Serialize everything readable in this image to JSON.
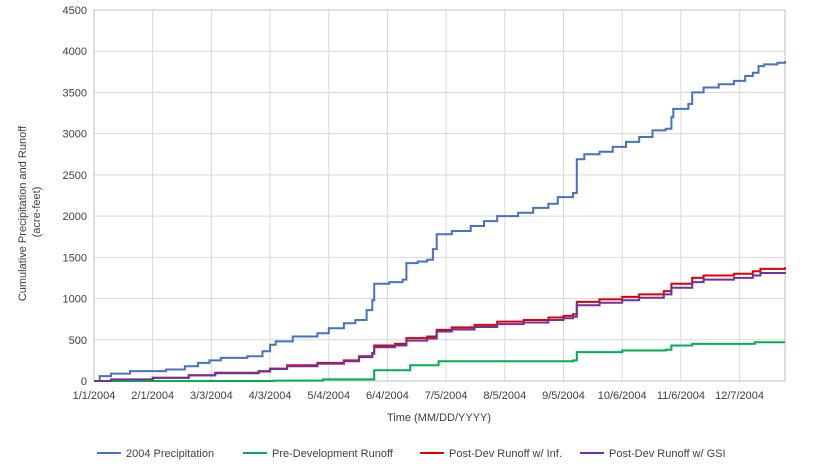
{
  "chart_data": {
    "type": "line",
    "xlabel": "Time (MM/DD/YYYY)",
    "ylabel_lines": [
      "Cumulative Precipitation and Runoff",
      "(acre-feet)"
    ],
    "ylim": [
      0,
      4500
    ],
    "yticks": [
      0,
      500,
      1000,
      1500,
      2000,
      2500,
      3000,
      3500,
      4000,
      4500
    ],
    "xlim": [
      "2004-01-01",
      "2004-12-31"
    ],
    "xticks": [
      {
        "date": "2004-01-01",
        "label": "1/1/2004"
      },
      {
        "date": "2004-02-01",
        "label": "2/1/2004"
      },
      {
        "date": "2004-03-03",
        "label": "3/3/2004"
      },
      {
        "date": "2004-04-03",
        "label": "4/3/2004"
      },
      {
        "date": "2004-05-04",
        "label": "5/4/2004"
      },
      {
        "date": "2004-06-04",
        "label": "6/4/2004"
      },
      {
        "date": "2004-07-05",
        "label": "7/5/2004"
      },
      {
        "date": "2004-08-05",
        "label": "8/5/2004"
      },
      {
        "date": "2004-09-05",
        "label": "9/5/2004"
      },
      {
        "date": "2004-10-06",
        "label": "10/6/2004"
      },
      {
        "date": "2004-11-06",
        "label": "11/6/2004"
      },
      {
        "date": "2004-12-07",
        "label": "12/7/2004"
      }
    ],
    "grid": true,
    "legend_position": "bottom",
    "series": [
      {
        "name": "2004 Precipitation",
        "color": "#4472C4",
        "points": [
          [
            "2004-01-01",
            0
          ],
          [
            "2004-01-04",
            60
          ],
          [
            "2004-01-10",
            90
          ],
          [
            "2004-01-20",
            120
          ],
          [
            "2004-02-08",
            140
          ],
          [
            "2004-02-18",
            180
          ],
          [
            "2004-02-25",
            220
          ],
          [
            "2004-03-02",
            250
          ],
          [
            "2004-03-08",
            280
          ],
          [
            "2004-03-22",
            300
          ],
          [
            "2004-03-30",
            360
          ],
          [
            "2004-04-03",
            440
          ],
          [
            "2004-04-06",
            480
          ],
          [
            "2004-04-15",
            540
          ],
          [
            "2004-04-28",
            580
          ],
          [
            "2004-05-04",
            640
          ],
          [
            "2004-05-12",
            700
          ],
          [
            "2004-05-18",
            740
          ],
          [
            "2004-05-24",
            860
          ],
          [
            "2004-05-27",
            980
          ],
          [
            "2004-05-28",
            1180
          ],
          [
            "2004-06-05",
            1200
          ],
          [
            "2004-06-12",
            1230
          ],
          [
            "2004-06-14",
            1430
          ],
          [
            "2004-06-20",
            1450
          ],
          [
            "2004-06-25",
            1470
          ],
          [
            "2004-06-28",
            1600
          ],
          [
            "2004-06-30",
            1780
          ],
          [
            "2004-07-08",
            1820
          ],
          [
            "2004-07-18",
            1880
          ],
          [
            "2004-07-25",
            1940
          ],
          [
            "2004-08-01",
            2000
          ],
          [
            "2004-08-12",
            2040
          ],
          [
            "2004-08-20",
            2100
          ],
          [
            "2004-08-28",
            2150
          ],
          [
            "2004-09-02",
            2230
          ],
          [
            "2004-09-10",
            2280
          ],
          [
            "2004-09-12",
            2690
          ],
          [
            "2004-09-16",
            2750
          ],
          [
            "2004-09-24",
            2780
          ],
          [
            "2004-10-01",
            2840
          ],
          [
            "2004-10-08",
            2900
          ],
          [
            "2004-10-15",
            2960
          ],
          [
            "2004-10-22",
            3040
          ],
          [
            "2004-10-29",
            3060
          ],
          [
            "2004-11-01",
            3200
          ],
          [
            "2004-11-02",
            3300
          ],
          [
            "2004-11-10",
            3360
          ],
          [
            "2004-11-12",
            3500
          ],
          [
            "2004-11-18",
            3560
          ],
          [
            "2004-11-26",
            3600
          ],
          [
            "2004-12-04",
            3640
          ],
          [
            "2004-12-10",
            3700
          ],
          [
            "2004-12-14",
            3740
          ],
          [
            "2004-12-17",
            3820
          ],
          [
            "2004-12-20",
            3840
          ],
          [
            "2004-12-27",
            3860
          ],
          [
            "2004-12-31",
            3880
          ]
        ]
      },
      {
        "name": "Pre-Development Runoff",
        "color": "#00B050",
        "points": [
          [
            "2004-01-01",
            0
          ],
          [
            "2004-04-05",
            5
          ],
          [
            "2004-05-01",
            20
          ],
          [
            "2004-05-28",
            130
          ],
          [
            "2004-06-16",
            190
          ],
          [
            "2004-07-01",
            240
          ],
          [
            "2004-09-10",
            250
          ],
          [
            "2004-09-12",
            350
          ],
          [
            "2004-10-06",
            370
          ],
          [
            "2004-10-29",
            380
          ],
          [
            "2004-11-01",
            430
          ],
          [
            "2004-11-12",
            450
          ],
          [
            "2004-12-15",
            470
          ],
          [
            "2004-12-31",
            470
          ]
        ]
      },
      {
        "name": "Post-Dev Runoff w/ Inf.",
        "color": "#E00000",
        "points": [
          [
            "2004-01-01",
            0
          ],
          [
            "2004-01-10",
            20
          ],
          [
            "2004-02-01",
            40
          ],
          [
            "2004-02-20",
            70
          ],
          [
            "2004-03-05",
            100
          ],
          [
            "2004-03-28",
            120
          ],
          [
            "2004-04-03",
            150
          ],
          [
            "2004-04-12",
            190
          ],
          [
            "2004-04-28",
            220
          ],
          [
            "2004-05-12",
            250
          ],
          [
            "2004-05-20",
            300
          ],
          [
            "2004-05-27",
            340
          ],
          [
            "2004-05-28",
            430
          ],
          [
            "2004-06-08",
            450
          ],
          [
            "2004-06-14",
            520
          ],
          [
            "2004-06-25",
            540
          ],
          [
            "2004-06-30",
            620
          ],
          [
            "2004-07-08",
            650
          ],
          [
            "2004-07-20",
            680
          ],
          [
            "2004-08-01",
            720
          ],
          [
            "2004-08-15",
            740
          ],
          [
            "2004-08-28",
            770
          ],
          [
            "2004-09-05",
            790
          ],
          [
            "2004-09-10",
            810
          ],
          [
            "2004-09-12",
            960
          ],
          [
            "2004-09-24",
            990
          ],
          [
            "2004-10-06",
            1020
          ],
          [
            "2004-10-15",
            1050
          ],
          [
            "2004-10-28",
            1090
          ],
          [
            "2004-11-01",
            1180
          ],
          [
            "2004-11-12",
            1250
          ],
          [
            "2004-11-18",
            1280
          ],
          [
            "2004-12-04",
            1300
          ],
          [
            "2004-12-14",
            1330
          ],
          [
            "2004-12-18",
            1360
          ],
          [
            "2004-12-31",
            1380
          ]
        ]
      },
      {
        "name": "Post-Dev Runoff w/ GSI",
        "color": "#7030A0",
        "points": [
          [
            "2004-01-01",
            0
          ],
          [
            "2004-01-10",
            18
          ],
          [
            "2004-02-01",
            38
          ],
          [
            "2004-02-20",
            68
          ],
          [
            "2004-03-05",
            95
          ],
          [
            "2004-03-28",
            115
          ],
          [
            "2004-04-03",
            145
          ],
          [
            "2004-04-12",
            180
          ],
          [
            "2004-04-28",
            210
          ],
          [
            "2004-05-12",
            240
          ],
          [
            "2004-05-20",
            290
          ],
          [
            "2004-05-27",
            330
          ],
          [
            "2004-05-28",
            410
          ],
          [
            "2004-06-08",
            430
          ],
          [
            "2004-06-14",
            490
          ],
          [
            "2004-06-25",
            515
          ],
          [
            "2004-06-30",
            600
          ],
          [
            "2004-07-08",
            625
          ],
          [
            "2004-07-20",
            655
          ],
          [
            "2004-08-01",
            690
          ],
          [
            "2004-08-15",
            710
          ],
          [
            "2004-08-28",
            740
          ],
          [
            "2004-09-05",
            760
          ],
          [
            "2004-09-10",
            780
          ],
          [
            "2004-09-12",
            920
          ],
          [
            "2004-09-24",
            950
          ],
          [
            "2004-10-06",
            980
          ],
          [
            "2004-10-15",
            1010
          ],
          [
            "2004-10-28",
            1050
          ],
          [
            "2004-11-01",
            1130
          ],
          [
            "2004-11-12",
            1200
          ],
          [
            "2004-11-18",
            1230
          ],
          [
            "2004-12-04",
            1250
          ],
          [
            "2004-12-14",
            1280
          ],
          [
            "2004-12-18",
            1310
          ],
          [
            "2004-12-31",
            1320
          ]
        ]
      }
    ]
  }
}
